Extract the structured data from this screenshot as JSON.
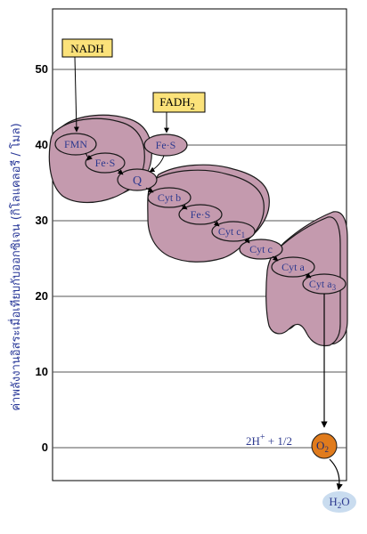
{
  "axis": {
    "ylabel": "ค่าพลังงานอิสระเมื่อเทียบกับออกซิเจน (กิโลแคลอรี / โมล)",
    "ticks": [
      "50",
      "40",
      "30",
      "20",
      "10",
      "0"
    ]
  },
  "inputs": {
    "nadh": "NADH",
    "fadh2_main": "FADH",
    "fadh2_sub": "2"
  },
  "carriers": {
    "fmn": "FMN",
    "fes1": "Fe·S",
    "fes2": "Fe·S",
    "q": "Q",
    "cytb": "Cyt b",
    "fes3": "Fe·S",
    "cytc1_main": "Cyt c",
    "cytc1_sub": "1",
    "cytc": "Cyt c",
    "cyta": "Cyt a",
    "cyta3_main": "Cyt a",
    "cyta3_sub": "3"
  },
  "terminal": {
    "eq_prefix": "2H",
    "eq_sup": "+",
    "eq_rest": " + 1/2",
    "o2_main": "O",
    "o2_sub": "2",
    "h2o_pre": "H",
    "h2o_sub": "2",
    "h2o_post": "O"
  },
  "colors": {
    "complex_fill": "#c49aae",
    "complex_stroke": "#1a1a1a",
    "box_fill": "#fbe27a",
    "o2_fill": "#e07b1c",
    "h2o_fill": "#c9dcef",
    "text_blue": "#2e3a8f"
  }
}
